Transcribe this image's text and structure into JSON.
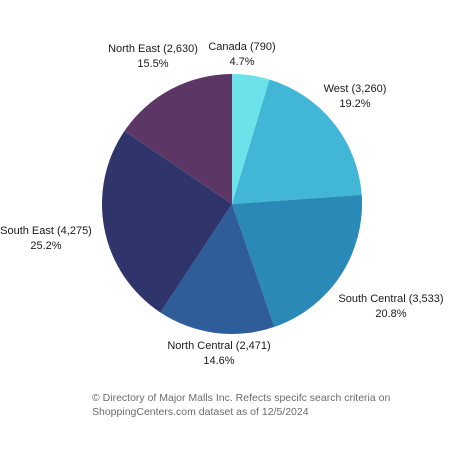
{
  "chart_data": {
    "type": "pie",
    "title": "",
    "slices": [
      {
        "name": "Canada",
        "value": 790,
        "label": "Canada (790)",
        "percent": "4.7%",
        "color": "#6ce3ea"
      },
      {
        "name": "West",
        "value": 3260,
        "label": "West (3,260)",
        "percent": "19.2%",
        "color": "#42b6d6"
      },
      {
        "name": "South Central",
        "value": 3533,
        "label": "South Central (3,533)",
        "percent": "20.8%",
        "color": "#2b89b8"
      },
      {
        "name": "North Central",
        "value": 2471,
        "label": "North Central (2,471)",
        "percent": "14.6%",
        "color": "#2e5d99"
      },
      {
        "name": "South East",
        "value": 4275,
        "label": "South East (4,275)",
        "percent": "25.2%",
        "color": "#2f346b"
      },
      {
        "name": "North East",
        "value": 2630,
        "label": "North East (2,630)",
        "percent": "15.5%",
        "color": "#5c3766"
      }
    ],
    "start": "12 o'clock",
    "direction": "clockwise",
    "legend": "none"
  },
  "footnote": {
    "line1": "© Directory of Major Malls Inc. Refects specifc search criteria on",
    "line2": "ShoppingCenters.com dataset as of 12/5/2024"
  }
}
